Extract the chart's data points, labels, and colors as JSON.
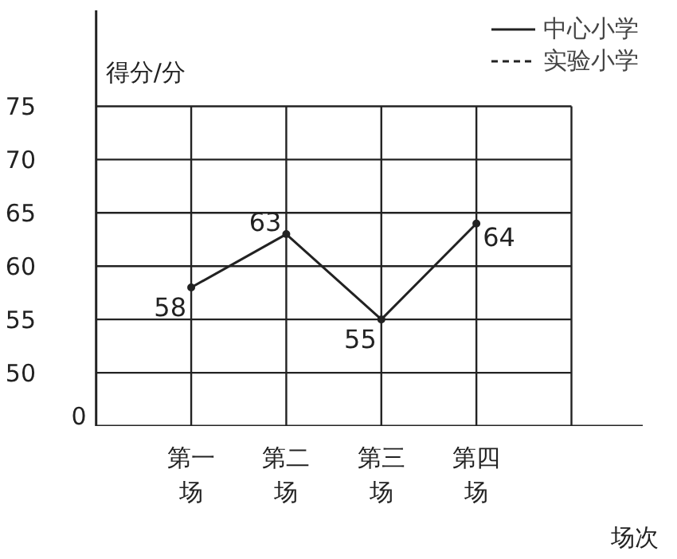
{
  "chart_data": {
    "type": "line",
    "xlabel": "场次",
    "ylabel": "得分/分",
    "categories": [
      "第一场",
      "第二场",
      "第三场",
      "第四场"
    ],
    "series": [
      {
        "name": "中心小学",
        "color": "#222222",
        "values": [
          58,
          63,
          55,
          64
        ],
        "line_style": "solid"
      },
      {
        "name": "实验小学",
        "color": "#222222",
        "values": [
          null,
          null,
          null,
          null
        ],
        "line_style": "dashed"
      }
    ],
    "ylim": [
      45,
      84
    ],
    "yticks": [
      50,
      55,
      60,
      65,
      70,
      75
    ],
    "annotations": [
      "0"
    ],
    "grid": true,
    "legend": "top right",
    "data_labels": true,
    "marker": "circle"
  }
}
